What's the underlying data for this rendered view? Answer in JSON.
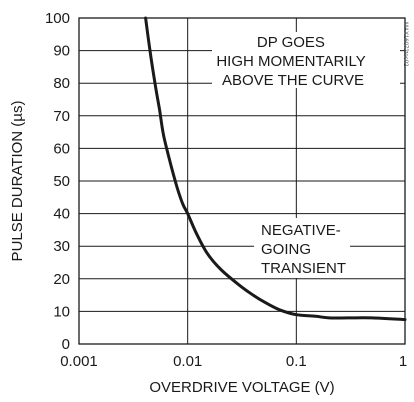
{
  "chart_data": {
    "type": "line",
    "xlabel": "OVERDRIVE VOLTAGE (V)",
    "ylabel": "PULSE DURATION (µs)",
    "x_scale": "log",
    "xlim": [
      0.001,
      1
    ],
    "ylim": [
      0,
      100
    ],
    "x_ticks": [
      "0.001",
      "0.01",
      "0.1",
      "1"
    ],
    "y_ticks": [
      "0",
      "10",
      "20",
      "30",
      "40",
      "50",
      "60",
      "70",
      "80",
      "90",
      "100"
    ],
    "grid": true,
    "series": [
      {
        "x": [
          0.0041,
          0.0045,
          0.005,
          0.0055,
          0.006,
          0.007,
          0.008,
          0.009,
          0.01,
          0.012,
          0.015,
          0.02,
          0.03,
          0.04,
          0.05,
          0.07,
          0.1,
          0.15,
          0.2,
          0.3,
          0.5,
          1.0
        ],
        "y": [
          100,
          90,
          80,
          72,
          64,
          55,
          48,
          43,
          40,
          34,
          28,
          23,
          18,
          15,
          13,
          10.5,
          9,
          8.5,
          8,
          8,
          8,
          7.5
        ]
      }
    ],
    "annotations": [
      {
        "lines": [
          "DP GOES",
          "HIGH MOMENTARILY",
          "ABOVE THE CURVE"
        ]
      },
      {
        "lines": [
          "NEGATIVE-",
          "GOING",
          "TRANSIENT"
        ]
      }
    ],
    "figure_code": "MAX16072toc02"
  }
}
